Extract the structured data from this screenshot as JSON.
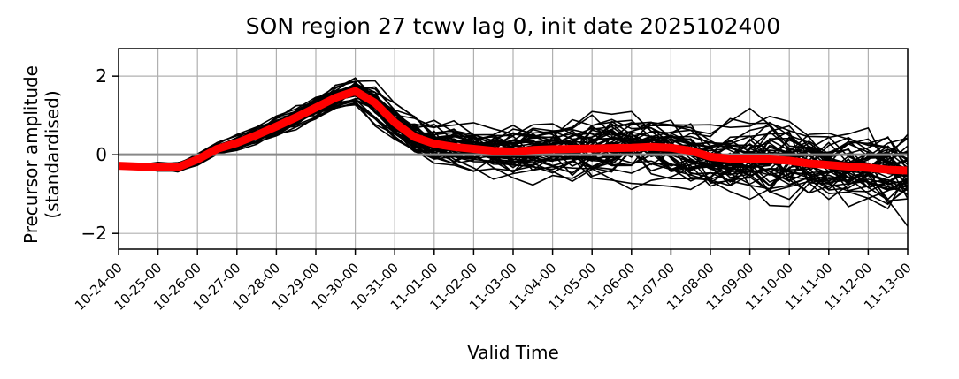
{
  "chart_data": {
    "type": "line",
    "title": "SON region 27 tcwv lag 0, init date 2025102400",
    "xlabel": "Valid Time",
    "ylabel_line1": "Precursor amplitude",
    "ylabel_line2": "(standardised)",
    "x_ticks": [
      "10-24-00",
      "10-25-00",
      "10-26-00",
      "10-27-00",
      "10-28-00",
      "10-29-00",
      "10-30-00",
      "10-31-00",
      "11-01-00",
      "11-02-00",
      "11-03-00",
      "11-04-00",
      "11-05-00",
      "11-06-00",
      "11-07-00",
      "11-08-00",
      "11-09-00",
      "11-10-00",
      "11-11-00",
      "11-12-00",
      "11-13-00"
    ],
    "y_ticks": [
      -2,
      0,
      2
    ],
    "y_tick_labels": [
      "−2",
      "0",
      "2"
    ],
    "ylim": [
      -2.4,
      2.7
    ],
    "xlim_days": [
      0,
      20
    ],
    "grid": true,
    "zero_line": true,
    "colors": {
      "ensemble": "#000000",
      "mean": "#ff0000",
      "zero_line": "#888888",
      "grid": "#b0b0b0"
    },
    "series": [
      {
        "role": "ensemble-mean",
        "x_days": [
          0,
          0.5,
          1,
          1.5,
          2,
          2.5,
          3,
          3.5,
          4,
          4.5,
          5,
          5.5,
          6,
          6.5,
          7,
          7.5,
          8,
          8.5,
          9,
          9.5,
          10,
          10.5,
          11,
          11.5,
          12,
          12.5,
          13,
          13.5,
          14,
          14.5,
          15,
          15.5,
          16,
          16.5,
          17,
          17.5,
          18,
          18.5,
          19,
          19.5,
          20
        ],
        "values": [
          -0.28,
          -0.3,
          -0.3,
          -0.32,
          -0.12,
          0.15,
          0.3,
          0.5,
          0.72,
          0.95,
          1.2,
          1.45,
          1.62,
          1.32,
          0.82,
          0.45,
          0.28,
          0.2,
          0.15,
          0.1,
          0.08,
          0.12,
          0.14,
          0.15,
          0.16,
          0.17,
          0.18,
          0.2,
          0.18,
          0.1,
          -0.05,
          -0.1,
          -0.1,
          -0.12,
          -0.15,
          -0.22,
          -0.26,
          -0.3,
          -0.33,
          -0.38,
          -0.4
        ]
      }
    ],
    "ensemble": {
      "members": 50,
      "x_step_days": 0.5,
      "note_values_generated": false
    }
  }
}
